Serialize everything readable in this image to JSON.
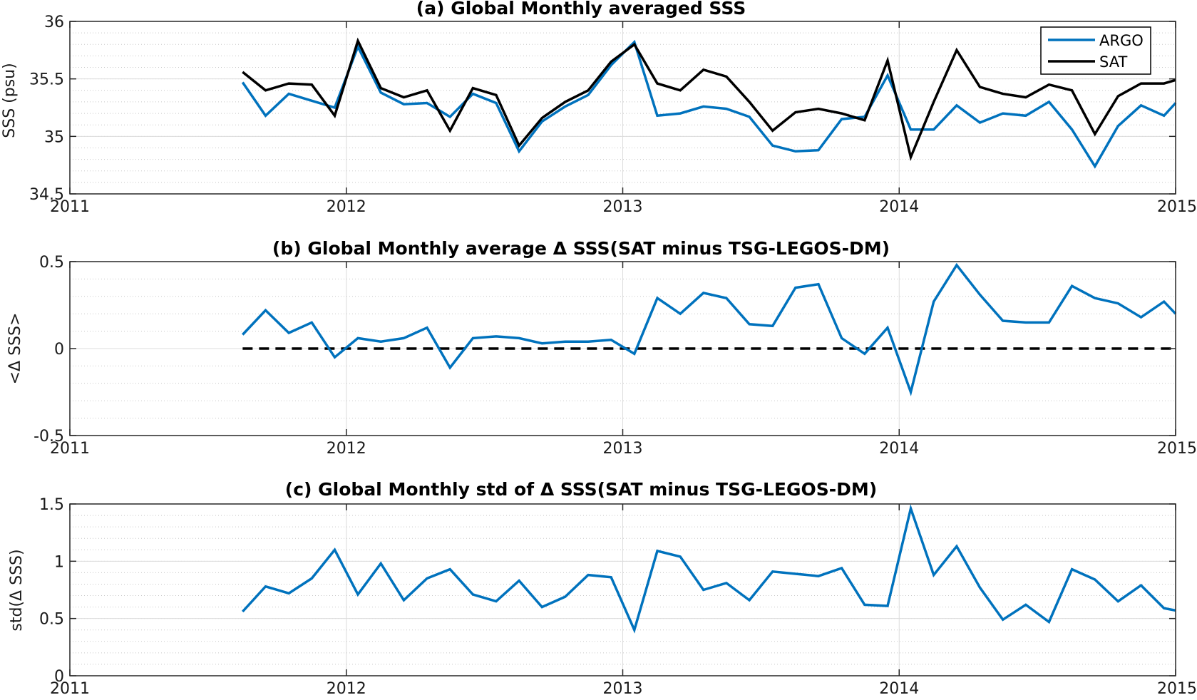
{
  "colors": {
    "argo": "#0072BD",
    "sat": "#000000",
    "zero_line": "#000000",
    "grid": "#dcdcdc",
    "minor_grid": "#c8c8c8"
  },
  "chart_data": [
    {
      "type": "line",
      "title": "(a) Global Monthly averaged SSS",
      "xlabel": "",
      "ylabel": "SSS (psu)",
      "xlim": [
        2011,
        2015
      ],
      "ylim": [
        34.5,
        36
      ],
      "xticks": [
        "2011",
        "2012",
        "2013",
        "2014",
        "2015"
      ],
      "yticks": [
        "34.5",
        "35",
        "35.5",
        "36"
      ],
      "grid": true,
      "legend": "top-right",
      "x": [
        2011.625,
        2011.708,
        2011.792,
        2011.875,
        2011.958,
        2012.042,
        2012.125,
        2012.208,
        2012.292,
        2012.375,
        2012.458,
        2012.542,
        2012.625,
        2012.708,
        2012.792,
        2012.875,
        2012.958,
        2013.042,
        2013.125,
        2013.208,
        2013.292,
        2013.375,
        2013.458,
        2013.542,
        2013.625,
        2013.708,
        2013.792,
        2013.875,
        2013.958,
        2014.042,
        2014.125,
        2014.208,
        2014.292,
        2014.375,
        2014.458,
        2014.542,
        2014.625,
        2014.708,
        2014.792,
        2014.875,
        2014.958,
        2015.0
      ],
      "series": [
        {
          "name": "ARGO",
          "color": "#0072BD",
          "values": [
            35.47,
            35.18,
            35.37,
            35.31,
            35.25,
            35.78,
            35.38,
            35.28,
            35.29,
            35.17,
            35.37,
            35.29,
            34.87,
            35.13,
            35.26,
            35.36,
            35.62,
            35.82,
            35.18,
            35.2,
            35.26,
            35.24,
            35.17,
            34.92,
            34.87,
            34.88,
            35.15,
            35.17,
            35.53,
            35.06,
            35.06,
            35.27,
            35.12,
            35.2,
            35.18,
            35.3,
            35.06,
            34.74,
            35.09,
            35.27,
            35.18,
            35.29
          ]
        },
        {
          "name": "SAT",
          "color": "#000000",
          "values": [
            35.56,
            35.4,
            35.46,
            35.45,
            35.18,
            35.83,
            35.42,
            35.34,
            35.4,
            35.05,
            35.42,
            35.36,
            34.92,
            35.16,
            35.3,
            35.4,
            35.65,
            35.8,
            35.46,
            35.4,
            35.58,
            35.52,
            35.3,
            35.05,
            35.21,
            35.24,
            35.2,
            35.14,
            35.66,
            34.82,
            35.3,
            35.75,
            35.43,
            35.37,
            35.34,
            35.45,
            35.4,
            35.02,
            35.35,
            35.46,
            35.46,
            35.49
          ]
        }
      ]
    },
    {
      "type": "line",
      "title": "(b) Global Monthly average Δ SSS(SAT minus TSG-LEGOS-DM)",
      "xlabel": "",
      "ylabel": "<Δ SSS>",
      "xlim": [
        2011,
        2015
      ],
      "ylim": [
        -0.5,
        0.5
      ],
      "xticks": [
        "2011",
        "2012",
        "2013",
        "2014",
        "2015"
      ],
      "yticks": [
        "-0.5",
        "0",
        "0.5"
      ],
      "grid": true,
      "reference_line": {
        "y": 0,
        "x_start": 2011.625,
        "x_end": 2015.0,
        "style": "dashed"
      },
      "x": [
        2011.625,
        2011.708,
        2011.792,
        2011.875,
        2011.958,
        2012.042,
        2012.125,
        2012.208,
        2012.292,
        2012.375,
        2012.458,
        2012.542,
        2012.625,
        2012.708,
        2012.792,
        2012.875,
        2012.958,
        2013.042,
        2013.125,
        2013.208,
        2013.292,
        2013.375,
        2013.458,
        2013.542,
        2013.625,
        2013.708,
        2013.792,
        2013.875,
        2013.958,
        2014.042,
        2014.125,
        2014.208,
        2014.292,
        2014.375,
        2014.458,
        2014.542,
        2014.625,
        2014.708,
        2014.792,
        2014.875,
        2014.958,
        2015.0
      ],
      "series": [
        {
          "color": "#0072BD",
          "values": [
            0.08,
            0.22,
            0.09,
            0.15,
            -0.05,
            0.06,
            0.04,
            0.06,
            0.12,
            -0.11,
            0.06,
            0.07,
            0.06,
            0.03,
            0.04,
            0.04,
            0.05,
            -0.03,
            0.29,
            0.2,
            0.32,
            0.29,
            0.14,
            0.13,
            0.35,
            0.37,
            0.06,
            -0.03,
            0.12,
            -0.25,
            0.27,
            0.48,
            0.31,
            0.16,
            0.15,
            0.15,
            0.36,
            0.29,
            0.26,
            0.18,
            0.27,
            0.2
          ]
        }
      ]
    },
    {
      "type": "line",
      "title": "(c) Global Monthly std of Δ SSS(SAT minus TSG-LEGOS-DM)",
      "xlabel": "",
      "ylabel": "std(Δ SSS)",
      "xlim": [
        2011,
        2015
      ],
      "ylim": [
        0,
        1.5
      ],
      "xticks": [
        "2011",
        "2012",
        "2013",
        "2014",
        "2015"
      ],
      "yticks": [
        "0",
        "0.5",
        "1",
        "1.5"
      ],
      "grid": true,
      "x": [
        2011.625,
        2011.708,
        2011.792,
        2011.875,
        2011.958,
        2012.042,
        2012.125,
        2012.208,
        2012.292,
        2012.375,
        2012.458,
        2012.542,
        2012.625,
        2012.708,
        2012.792,
        2012.875,
        2012.958,
        2013.042,
        2013.125,
        2013.208,
        2013.292,
        2013.375,
        2013.458,
        2013.542,
        2013.625,
        2013.708,
        2013.792,
        2013.875,
        2013.958,
        2014.042,
        2014.125,
        2014.208,
        2014.292,
        2014.375,
        2014.458,
        2014.542,
        2014.625,
        2014.708,
        2014.792,
        2014.875,
        2014.958,
        2015.0
      ],
      "series": [
        {
          "color": "#0072BD",
          "values": [
            0.56,
            0.78,
            0.72,
            0.85,
            1.1,
            0.71,
            0.98,
            0.66,
            0.85,
            0.93,
            0.71,
            0.65,
            0.83,
            0.6,
            0.69,
            0.88,
            0.86,
            0.4,
            1.09,
            1.04,
            0.75,
            0.81,
            0.66,
            0.91,
            0.89,
            0.87,
            0.94,
            0.62,
            0.61,
            1.46,
            0.88,
            1.13,
            0.77,
            0.49,
            0.62,
            0.47,
            0.93,
            0.84,
            0.65,
            0.79,
            0.59,
            0.57
          ]
        }
      ]
    }
  ]
}
